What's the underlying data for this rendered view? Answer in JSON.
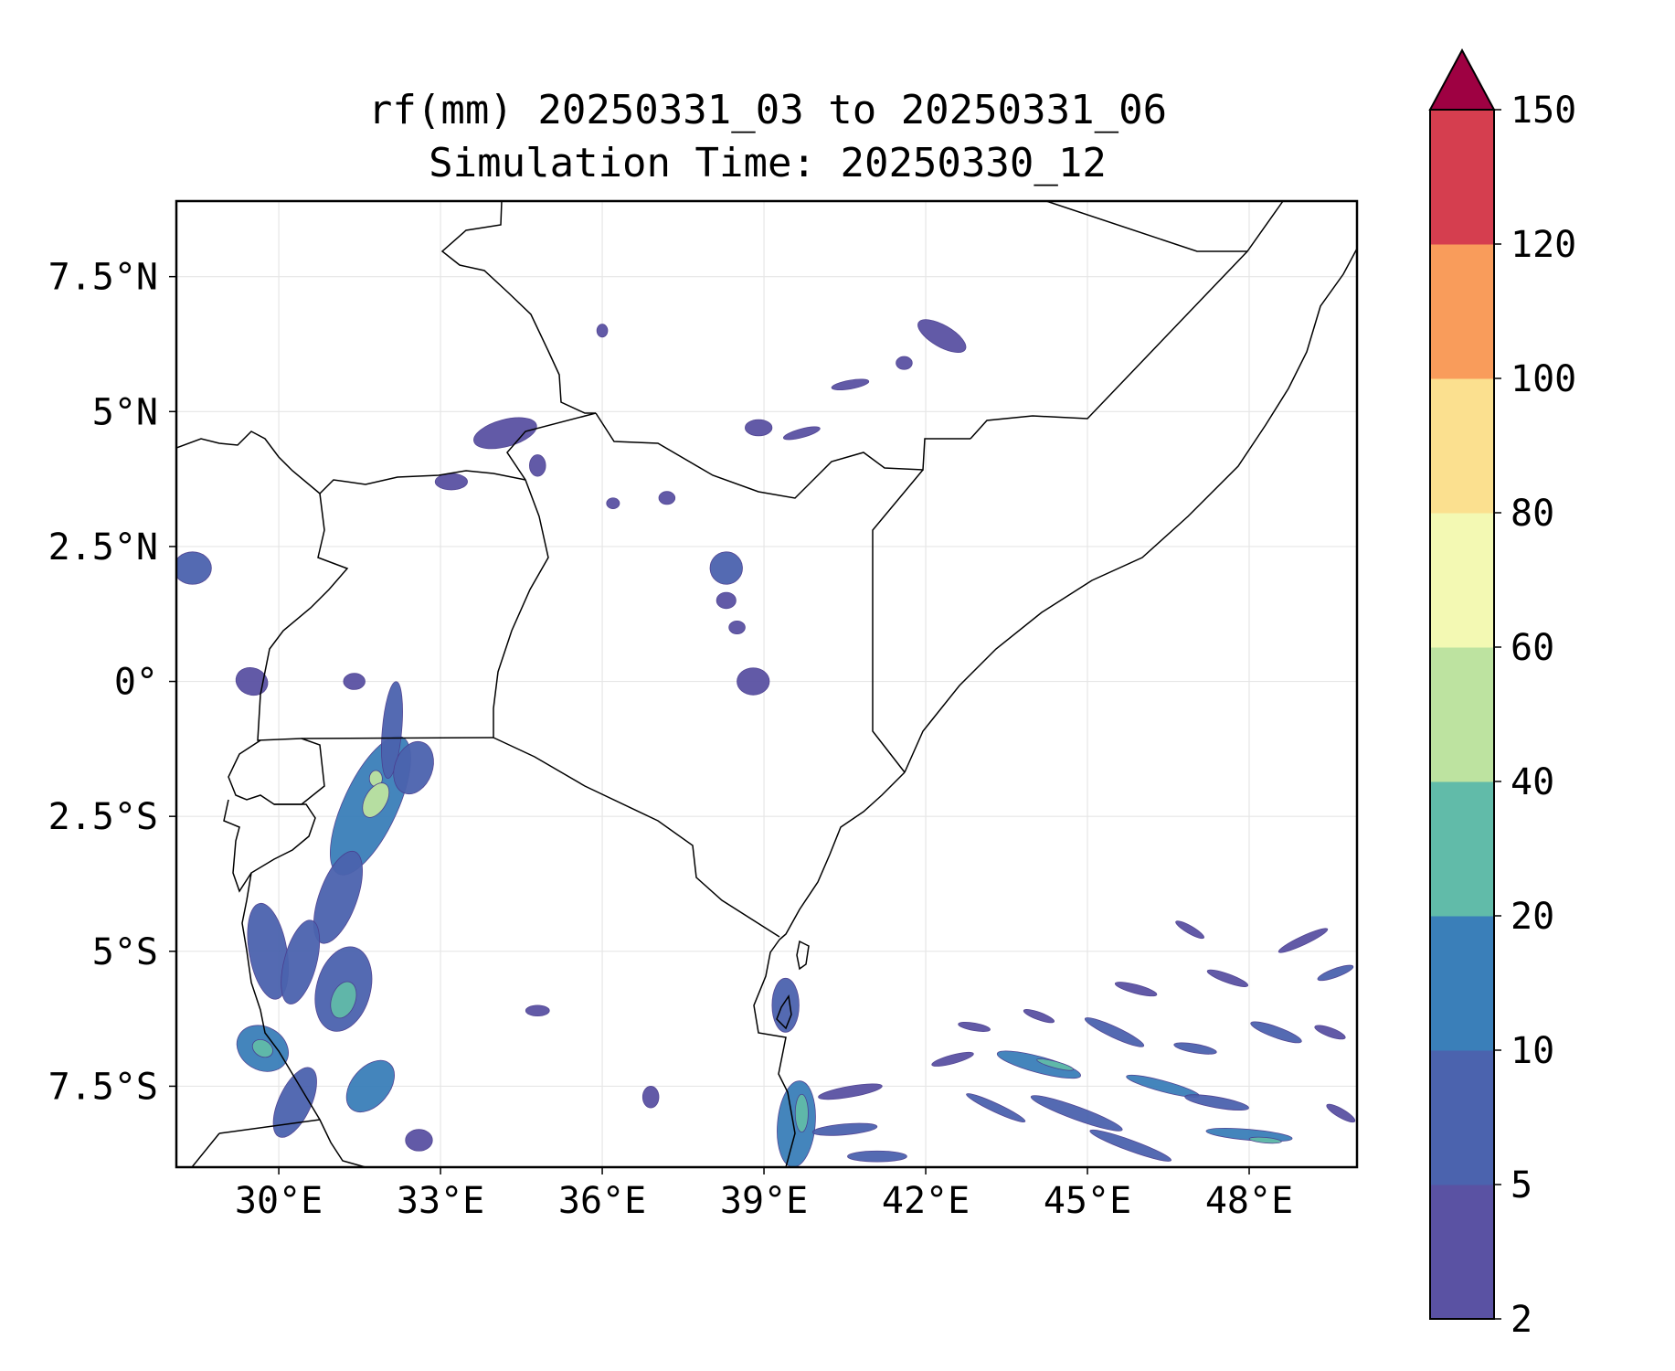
{
  "title": {
    "line1": "rf(mm) 20250331_03 to 20250331_06",
    "line2": "Simulation Time: 20250330_12"
  },
  "chart_data": {
    "type": "heatmap",
    "variable": "rf(mm)",
    "title": "rf(mm) 20250331_03 to 20250331_06",
    "subtitle": "Simulation Time: 20250330_12",
    "xlim": [
      28.1,
      50.0
    ],
    "ylim": [
      -9.0,
      8.9
    ],
    "x_ticks": [
      {
        "value": 30,
        "label": "30°E"
      },
      {
        "value": 33,
        "label": "33°E"
      },
      {
        "value": 36,
        "label": "36°E"
      },
      {
        "value": 39,
        "label": "39°E"
      },
      {
        "value": 42,
        "label": "42°E"
      },
      {
        "value": 45,
        "label": "45°E"
      },
      {
        "value": 48,
        "label": "48°E"
      }
    ],
    "y_ticks": [
      {
        "value": 7.5,
        "label": "7.5°N"
      },
      {
        "value": 5,
        "label": "5°N"
      },
      {
        "value": 2.5,
        "label": "2.5°N"
      },
      {
        "value": 0,
        "label": "0°"
      },
      {
        "value": -2.5,
        "label": "2.5°S"
      },
      {
        "value": -5,
        "label": "5°S"
      },
      {
        "value": -7.5,
        "label": "7.5°S"
      }
    ],
    "grid": true,
    "colorbar": {
      "extend": "max",
      "levels": [
        {
          "value": 2,
          "label": "2"
        },
        {
          "value": 5,
          "label": "5"
        },
        {
          "value": 10,
          "label": "10"
        },
        {
          "value": 20,
          "label": "20"
        },
        {
          "value": 40,
          "label": "40"
        },
        {
          "value": 60,
          "label": "60"
        },
        {
          "value": 80,
          "label": "80"
        },
        {
          "value": 100,
          "label": "100"
        },
        {
          "value": 120,
          "label": "120"
        },
        {
          "value": 150,
          "label": "150"
        }
      ],
      "colors": [
        "#5a52a3",
        "#4b63ae",
        "#3a7fb9",
        "#61bba9",
        "#bde3a0",
        "#f3f9b3",
        "#fbe08f",
        "#f99c5b",
        "#d53e4f"
      ],
      "extend_color": "#9e0142"
    },
    "rain_cells": [
      {
        "lon": 31.7,
        "lat": -2.3,
        "rx": 0.5,
        "ry": 1.4,
        "rot": 25,
        "level": 2
      },
      {
        "lon": 31.8,
        "lat": -1.8,
        "rx": 0.12,
        "ry": 0.15,
        "rot": 0,
        "level": 4
      },
      {
        "lon": 31.8,
        "lat": -2.2,
        "rx": 0.2,
        "ry": 0.35,
        "rot": 30,
        "level": 4
      },
      {
        "lon": 32.1,
        "lat": -0.9,
        "rx": 0.18,
        "ry": 0.9,
        "rot": 5,
        "level": 1
      },
      {
        "lon": 32.5,
        "lat": -1.6,
        "rx": 0.35,
        "ry": 0.5,
        "rot": 20,
        "level": 1
      },
      {
        "lon": 31.1,
        "lat": -4.0,
        "rx": 0.35,
        "ry": 0.9,
        "rot": 20,
        "level": 1
      },
      {
        "lon": 31.2,
        "lat": -5.7,
        "rx": 0.5,
        "ry": 0.8,
        "rot": 15,
        "level": 1
      },
      {
        "lon": 31.2,
        "lat": -5.9,
        "rx": 0.22,
        "ry": 0.35,
        "rot": 20,
        "level": 3
      },
      {
        "lon": 29.8,
        "lat": -5.0,
        "rx": 0.35,
        "ry": 0.9,
        "rot": -10,
        "level": 1
      },
      {
        "lon": 30.4,
        "lat": -5.2,
        "rx": 0.3,
        "ry": 0.8,
        "rot": 15,
        "level": 1
      },
      {
        "lon": 29.7,
        "lat": -6.8,
        "rx": 0.5,
        "ry": 0.4,
        "rot": 30,
        "level": 2
      },
      {
        "lon": 29.7,
        "lat": -6.8,
        "rx": 0.2,
        "ry": 0.15,
        "rot": 30,
        "level": 3
      },
      {
        "lon": 30.3,
        "lat": -7.8,
        "rx": 0.3,
        "ry": 0.7,
        "rot": 25,
        "level": 1
      },
      {
        "lon": 31.7,
        "lat": -7.5,
        "rx": 0.35,
        "ry": 0.55,
        "rot": 40,
        "level": 2
      },
      {
        "lon": 32.6,
        "lat": -8.5,
        "rx": 0.25,
        "ry": 0.2,
        "rot": 0,
        "level": 0
      },
      {
        "lon": 28.4,
        "lat": 2.1,
        "rx": 0.35,
        "ry": 0.3,
        "rot": 0,
        "level": 1
      },
      {
        "lon": 29.5,
        "lat": 0.0,
        "rx": 0.3,
        "ry": 0.25,
        "rot": 20,
        "level": 0
      },
      {
        "lon": 31.4,
        "lat": 0.0,
        "rx": 0.2,
        "ry": 0.15,
        "rot": 0,
        "level": 0
      },
      {
        "lon": 34.2,
        "lat": 4.6,
        "rx": 0.6,
        "ry": 0.25,
        "rot": -15,
        "level": 0
      },
      {
        "lon": 34.8,
        "lat": 4.0,
        "rx": 0.15,
        "ry": 0.2,
        "rot": 0,
        "level": 0
      },
      {
        "lon": 33.2,
        "lat": 3.7,
        "rx": 0.3,
        "ry": 0.15,
        "rot": 0,
        "level": 0
      },
      {
        "lon": 36.2,
        "lat": 3.3,
        "rx": 0.12,
        "ry": 0.1,
        "rot": 0,
        "level": 0
      },
      {
        "lon": 36.0,
        "lat": 6.5,
        "rx": 0.1,
        "ry": 0.12,
        "rot": 0,
        "level": 0
      },
      {
        "lon": 38.3,
        "lat": 2.1,
        "rx": 0.3,
        "ry": 0.3,
        "rot": 40,
        "level": 1
      },
      {
        "lon": 38.3,
        "lat": 1.5,
        "rx": 0.18,
        "ry": 0.15,
        "rot": 0,
        "level": 0
      },
      {
        "lon": 38.5,
        "lat": 1.0,
        "rx": 0.15,
        "ry": 0.12,
        "rot": 0,
        "level": 0
      },
      {
        "lon": 38.8,
        "lat": 0.0,
        "rx": 0.3,
        "ry": 0.25,
        "rot": 0,
        "level": 0
      },
      {
        "lon": 38.9,
        "lat": 4.7,
        "rx": 0.25,
        "ry": 0.15,
        "rot": 0,
        "level": 0
      },
      {
        "lon": 39.7,
        "lat": 4.6,
        "rx": 0.35,
        "ry": 0.08,
        "rot": -15,
        "level": 0
      },
      {
        "lon": 40.6,
        "lat": 5.5,
        "rx": 0.35,
        "ry": 0.08,
        "rot": -10,
        "level": 0
      },
      {
        "lon": 42.3,
        "lat": 6.4,
        "rx": 0.5,
        "ry": 0.2,
        "rot": 30,
        "level": 0
      },
      {
        "lon": 41.6,
        "lat": 5.9,
        "rx": 0.15,
        "ry": 0.12,
        "rot": 0,
        "level": 0
      },
      {
        "lon": 37.2,
        "lat": 3.4,
        "rx": 0.15,
        "ry": 0.12,
        "rot": 0,
        "level": 0
      },
      {
        "lon": 34.8,
        "lat": -6.1,
        "rx": 0.22,
        "ry": 0.1,
        "rot": 0,
        "level": 0
      },
      {
        "lon": 36.9,
        "lat": -7.7,
        "rx": 0.15,
        "ry": 0.2,
        "rot": 0,
        "level": 0
      },
      {
        "lon": 39.4,
        "lat": -6.0,
        "rx": 0.25,
        "ry": 0.5,
        "rot": 0,
        "level": 1
      },
      {
        "lon": 39.6,
        "lat": -8.2,
        "rx": 0.35,
        "ry": 0.8,
        "rot": 5,
        "level": 2
      },
      {
        "lon": 39.7,
        "lat": -8.0,
        "rx": 0.12,
        "ry": 0.35,
        "rot": 0,
        "level": 3
      },
      {
        "lon": 40.5,
        "lat": -8.3,
        "rx": 0.6,
        "ry": 0.1,
        "rot": -5,
        "level": 1
      },
      {
        "lon": 40.6,
        "lat": -7.6,
        "rx": 0.6,
        "ry": 0.1,
        "rot": -10,
        "level": 0
      },
      {
        "lon": 41.1,
        "lat": -8.8,
        "rx": 0.55,
        "ry": 0.1,
        "rot": 0,
        "level": 1
      },
      {
        "lon": 42.5,
        "lat": -7.0,
        "rx": 0.4,
        "ry": 0.08,
        "rot": -15,
        "level": 0
      },
      {
        "lon": 43.3,
        "lat": -7.9,
        "rx": 0.6,
        "ry": 0.08,
        "rot": 25,
        "level": 1
      },
      {
        "lon": 44.1,
        "lat": -7.1,
        "rx": 0.8,
        "ry": 0.15,
        "rot": 15,
        "level": 2
      },
      {
        "lon": 44.4,
        "lat": -7.1,
        "rx": 0.35,
        "ry": 0.06,
        "rot": 15,
        "level": 3
      },
      {
        "lon": 44.8,
        "lat": -8.0,
        "rx": 0.9,
        "ry": 0.12,
        "rot": 20,
        "level": 1
      },
      {
        "lon": 45.8,
        "lat": -8.6,
        "rx": 0.8,
        "ry": 0.1,
        "rot": 20,
        "level": 1
      },
      {
        "lon": 45.5,
        "lat": -6.5,
        "rx": 0.6,
        "ry": 0.1,
        "rot": 25,
        "level": 1
      },
      {
        "lon": 46.4,
        "lat": -7.5,
        "rx": 0.7,
        "ry": 0.1,
        "rot": 15,
        "level": 2
      },
      {
        "lon": 47.4,
        "lat": -7.8,
        "rx": 0.6,
        "ry": 0.1,
        "rot": 10,
        "level": 1
      },
      {
        "lon": 48.0,
        "lat": -8.4,
        "rx": 0.8,
        "ry": 0.1,
        "rot": 5,
        "level": 2
      },
      {
        "lon": 48.3,
        "lat": -8.5,
        "rx": 0.3,
        "ry": 0.05,
        "rot": 5,
        "level": 3
      },
      {
        "lon": 47.0,
        "lat": -6.8,
        "rx": 0.4,
        "ry": 0.08,
        "rot": 10,
        "level": 1
      },
      {
        "lon": 48.5,
        "lat": -6.5,
        "rx": 0.5,
        "ry": 0.1,
        "rot": 20,
        "level": 1
      },
      {
        "lon": 49.5,
        "lat": -6.5,
        "rx": 0.3,
        "ry": 0.08,
        "rot": 20,
        "level": 0
      },
      {
        "lon": 45.9,
        "lat": -5.7,
        "rx": 0.4,
        "ry": 0.08,
        "rot": 15,
        "level": 0
      },
      {
        "lon": 47.6,
        "lat": -5.5,
        "rx": 0.4,
        "ry": 0.08,
        "rot": 20,
        "level": 0
      },
      {
        "lon": 49.0,
        "lat": -4.8,
        "rx": 0.5,
        "ry": 0.08,
        "rot": -25,
        "level": 0
      },
      {
        "lon": 49.6,
        "lat": -5.4,
        "rx": 0.35,
        "ry": 0.08,
        "rot": -20,
        "level": 1
      },
      {
        "lon": 46.9,
        "lat": -4.6,
        "rx": 0.3,
        "ry": 0.07,
        "rot": 30,
        "level": 0
      },
      {
        "lon": 44.1,
        "lat": -6.2,
        "rx": 0.3,
        "ry": 0.07,
        "rot": 20,
        "level": 0
      },
      {
        "lon": 42.9,
        "lat": -6.4,
        "rx": 0.3,
        "ry": 0.07,
        "rot": 10,
        "level": 0
      },
      {
        "lon": 49.7,
        "lat": -8.0,
        "rx": 0.3,
        "ry": 0.08,
        "rot": 30,
        "level": 0
      }
    ]
  }
}
